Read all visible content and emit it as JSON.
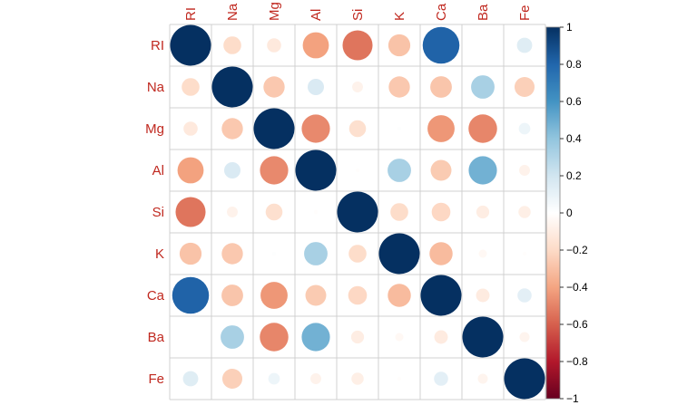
{
  "chart_data": {
    "type": "heatmap",
    "style": "circle correlation matrix",
    "variables": [
      "RI",
      "Na",
      "Mg",
      "Al",
      "Si",
      "K",
      "Ca",
      "Ba",
      "Fe"
    ],
    "matrix": [
      [
        1.0,
        -0.19,
        -0.12,
        -0.41,
        -0.54,
        -0.29,
        0.81,
        0.0,
        0.14
      ],
      [
        -0.19,
        1.0,
        -0.27,
        0.16,
        -0.07,
        -0.27,
        -0.28,
        0.33,
        -0.24
      ],
      [
        -0.12,
        -0.27,
        1.0,
        -0.48,
        -0.17,
        0.01,
        -0.44,
        -0.49,
        0.08
      ],
      [
        -0.41,
        0.16,
        -0.48,
        1.0,
        -0.01,
        0.33,
        -0.26,
        0.48,
        -0.07
      ],
      [
        -0.54,
        -0.07,
        -0.17,
        -0.01,
        1.0,
        -0.19,
        -0.21,
        -0.1,
        -0.09
      ],
      [
        -0.29,
        -0.27,
        0.01,
        0.33,
        -0.19,
        1.0,
        -0.32,
        -0.04,
        -0.01
      ],
      [
        0.81,
        -0.28,
        -0.44,
        -0.26,
        -0.21,
        -0.32,
        1.0,
        -0.11,
        0.12
      ],
      [
        0.0,
        0.33,
        -0.49,
        0.48,
        -0.1,
        -0.04,
        -0.11,
        1.0,
        -0.06
      ],
      [
        0.14,
        -0.24,
        0.08,
        -0.07,
        -0.09,
        -0.01,
        0.12,
        -0.06,
        1.0
      ]
    ],
    "colorbar": {
      "min": -1,
      "max": 1,
      "ticks": [
        1,
        0.8,
        0.6,
        0.4,
        0.2,
        0,
        -0.2,
        -0.4,
        -0.6,
        -0.8,
        -1
      ],
      "tick_labels": [
        "1",
        "0.8",
        "0.6",
        "0.4",
        "0.2",
        "0",
        "−0.2",
        "−0.4",
        "−0.6",
        "−0.8",
        "−1"
      ],
      "colors": [
        "#67001f",
        "#b2182b",
        "#d6604d",
        "#f4a582",
        "#fddbc7",
        "#ffffff",
        "#d1e5f0",
        "#92c5de",
        "#4393c3",
        "#2166ac",
        "#053061"
      ]
    },
    "label_color": "#c0281f",
    "grid": true,
    "legend_position": "right"
  }
}
